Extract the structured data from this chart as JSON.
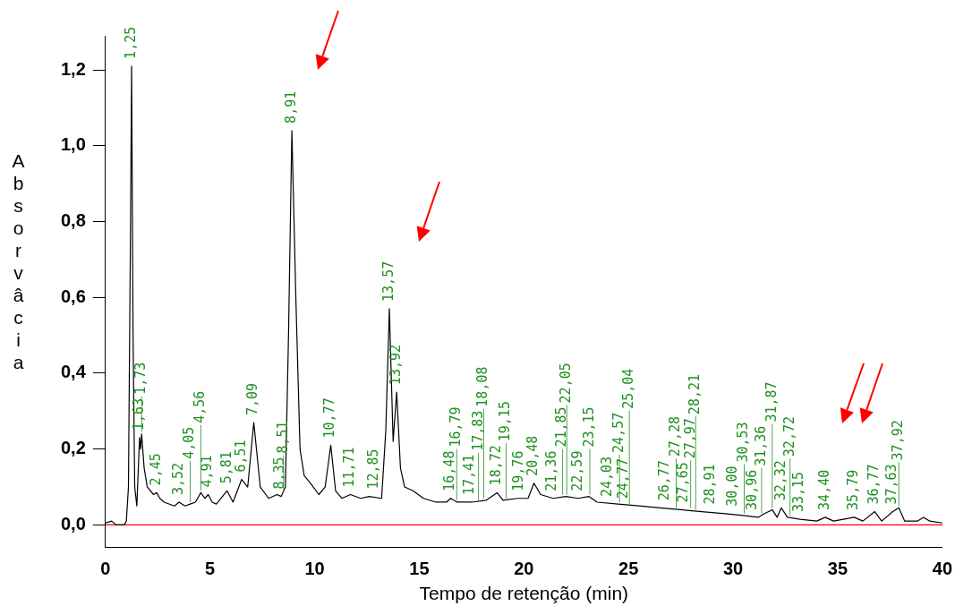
{
  "chart_data": {
    "type": "line",
    "xlabel": "Tempo de retenção (min)",
    "ylabel": "Absorvâcia",
    "xlim": [
      0,
      40
    ],
    "ylim": [
      -0.06,
      1.29
    ],
    "xticks": [
      0,
      5,
      10,
      15,
      20,
      25,
      30,
      35,
      40
    ],
    "yticks": [
      {
        "value": 0,
        "label": "0,0"
      },
      {
        "value": 0.2,
        "label": "0,2"
      },
      {
        "value": 0.4,
        "label": "0,4"
      },
      {
        "value": 0.6,
        "label": "0,6"
      },
      {
        "value": 0.8,
        "label": "0,8"
      },
      {
        "value": 1.0,
        "label": "1,0"
      },
      {
        "value": 1.2,
        "label": "1,2"
      }
    ],
    "grid": false,
    "legend": false,
    "marker": "none",
    "line_style": "solid",
    "series": [
      {
        "color": "#000000",
        "x": [
          0,
          0.3,
          0.5,
          0.9,
          1.0,
          1.1,
          1.2,
          1.25,
          1.32,
          1.4,
          1.5,
          1.63,
          1.68,
          1.73,
          1.85,
          2.0,
          2.3,
          2.45,
          2.6,
          2.8,
          3.3,
          3.52,
          3.8,
          4.05,
          4.3,
          4.56,
          4.75,
          4.91,
          5.1,
          5.3,
          5.81,
          6.1,
          6.51,
          6.8,
          7.09,
          7.4,
          7.8,
          8.2,
          8.4,
          8.6,
          8.75,
          8.91,
          9.1,
          9.3,
          9.5,
          9.8,
          10.2,
          10.5,
          10.77,
          11.0,
          11.3,
          11.71,
          12.2,
          12.6,
          13.2,
          13.4,
          13.57,
          13.75,
          13.92,
          14.1,
          14.3,
          14.7,
          15.2,
          15.8,
          16.3,
          16.5,
          16.8,
          17.5,
          18.2,
          18.72,
          19.0,
          19.7,
          20.2,
          20.48,
          20.8,
          21.4,
          22.0,
          22.6,
          23.1,
          23.5,
          24.5,
          25.5,
          26.5,
          27.5,
          28.5,
          29.5,
          30.5,
          31.2,
          31.5,
          31.87,
          32.1,
          32.3,
          32.6,
          33.2,
          34.0,
          34.4,
          34.8,
          35.79,
          36.2,
          36.77,
          37.1,
          37.63,
          37.92,
          38.2,
          38.8,
          39.1,
          39.4,
          40
        ],
        "values": [
          0.005,
          0.01,
          0.0,
          0.0,
          0.01,
          0.1,
          0.8,
          1.21,
          0.5,
          0.1,
          0.05,
          0.23,
          0.2,
          0.24,
          0.15,
          0.1,
          0.08,
          0.085,
          0.07,
          0.06,
          0.05,
          0.06,
          0.05,
          0.055,
          0.06,
          0.085,
          0.07,
          0.08,
          0.06,
          0.055,
          0.09,
          0.06,
          0.12,
          0.1,
          0.27,
          0.1,
          0.07,
          0.08,
          0.075,
          0.1,
          0.5,
          1.04,
          0.6,
          0.2,
          0.13,
          0.11,
          0.08,
          0.1,
          0.21,
          0.09,
          0.07,
          0.08,
          0.07,
          0.075,
          0.07,
          0.25,
          0.57,
          0.22,
          0.35,
          0.15,
          0.1,
          0.09,
          0.07,
          0.06,
          0.06,
          0.07,
          0.06,
          0.06,
          0.065,
          0.085,
          0.065,
          0.07,
          0.07,
          0.11,
          0.08,
          0.07,
          0.075,
          0.07,
          0.075,
          0.06,
          0.055,
          0.05,
          0.045,
          0.04,
          0.035,
          0.03,
          0.025,
          0.02,
          0.03,
          0.04,
          0.02,
          0.045,
          0.02,
          0.015,
          0.01,
          0.02,
          0.01,
          0.02,
          0.01,
          0.035,
          0.01,
          0.035,
          0.045,
          0.01,
          0.01,
          0.02,
          0.01,
          0.005
        ]
      }
    ],
    "ref_lines": [
      {
        "axis": "y",
        "value": 0,
        "color": "#ff0000"
      }
    ],
    "annotations": [
      {
        "text": "1,25",
        "x": 1.25,
        "y": 1.21
      },
      {
        "text": "1,63",
        "x": 1.63,
        "y": 0.23
      },
      {
        "text": "1,73",
        "x": 1.73,
        "y": 0.24
      },
      {
        "text": "2,45",
        "x": 2.45,
        "y": 0.085
      },
      {
        "text": "3,52",
        "x": 3.52,
        "y": 0.06
      },
      {
        "text": "4,05",
        "x": 4.05,
        "y": 0.055
      },
      {
        "text": "4,56",
        "x": 4.56,
        "y": 0.085
      },
      {
        "text": "4,91",
        "x": 4.91,
        "y": 0.08
      },
      {
        "text": "5,81",
        "x": 5.81,
        "y": 0.09
      },
      {
        "text": "6,51",
        "x": 6.51,
        "y": 0.12
      },
      {
        "text": "7,09",
        "x": 7.09,
        "y": 0.27
      },
      {
        "text": "8,35",
        "x": 8.35,
        "y": 0.075
      },
      {
        "text": "8,51",
        "x": 8.51,
        "y": 0.09
      },
      {
        "text": "8,91",
        "x": 8.91,
        "y": 1.04
      },
      {
        "text": "10,77",
        "x": 10.77,
        "y": 0.21
      },
      {
        "text": "11,71",
        "x": 11.71,
        "y": 0.08
      },
      {
        "text": "12,85",
        "x": 12.85,
        "y": 0.075
      },
      {
        "text": "13,57",
        "x": 13.57,
        "y": 0.57
      },
      {
        "text": "13,92",
        "x": 13.92,
        "y": 0.35
      },
      {
        "text": "16,48",
        "x": 16.48,
        "y": 0.07
      },
      {
        "text": "16,79",
        "x": 16.79,
        "y": 0.06
      },
      {
        "text": "17,41",
        "x": 17.41,
        "y": 0.06
      },
      {
        "text": "17,83",
        "x": 17.83,
        "y": 0.06
      },
      {
        "text": "18,08",
        "x": 18.08,
        "y": 0.065
      },
      {
        "text": "18,72",
        "x": 18.72,
        "y": 0.085
      },
      {
        "text": "19,15",
        "x": 19.15,
        "y": 0.065
      },
      {
        "text": "19,76",
        "x": 19.76,
        "y": 0.07
      },
      {
        "text": "20,48",
        "x": 20.48,
        "y": 0.11
      },
      {
        "text": "21,36",
        "x": 21.36,
        "y": 0.07
      },
      {
        "text": "21,85",
        "x": 21.85,
        "y": 0.075
      },
      {
        "text": "22,05",
        "x": 22.05,
        "y": 0.075
      },
      {
        "text": "22,59",
        "x": 22.59,
        "y": 0.07
      },
      {
        "text": "23,15",
        "x": 23.15,
        "y": 0.075
      },
      {
        "text": "24,03",
        "x": 24.03,
        "y": 0.055
      },
      {
        "text": "24,57",
        "x": 24.57,
        "y": 0.055
      },
      {
        "text": "24,77",
        "x": 24.77,
        "y": 0.05
      },
      {
        "text": "25,04",
        "x": 25.04,
        "y": 0.05
      },
      {
        "text": "26,77",
        "x": 26.77,
        "y": 0.045
      },
      {
        "text": "27,28",
        "x": 27.28,
        "y": 0.04
      },
      {
        "text": "27,65",
        "x": 27.65,
        "y": 0.04
      },
      {
        "text": "27,97",
        "x": 27.97,
        "y": 0.04
      },
      {
        "text": "28,21",
        "x": 28.21,
        "y": 0.035
      },
      {
        "text": "28,91",
        "x": 28.91,
        "y": 0.035
      },
      {
        "text": "30,00",
        "x": 30.0,
        "y": 0.03
      },
      {
        "text": "30,53",
        "x": 30.53,
        "y": 0.025
      },
      {
        "text": "30,96",
        "x": 30.96,
        "y": 0.02
      },
      {
        "text": "31,36",
        "x": 31.36,
        "y": 0.025
      },
      {
        "text": "31,87",
        "x": 31.87,
        "y": 0.04
      },
      {
        "text": "32,32",
        "x": 32.32,
        "y": 0.045
      },
      {
        "text": "32,72",
        "x": 32.72,
        "y": 0.02
      },
      {
        "text": "33,15",
        "x": 33.15,
        "y": 0.015
      },
      {
        "text": "34,40",
        "x": 34.4,
        "y": 0.02
      },
      {
        "text": "35,79",
        "x": 35.79,
        "y": 0.02
      },
      {
        "text": "36,77",
        "x": 36.77,
        "y": 0.035
      },
      {
        "text": "37,63",
        "x": 37.63,
        "y": 0.035
      },
      {
        "text": "37,92",
        "x": 37.92,
        "y": 0.045
      }
    ]
  }
}
